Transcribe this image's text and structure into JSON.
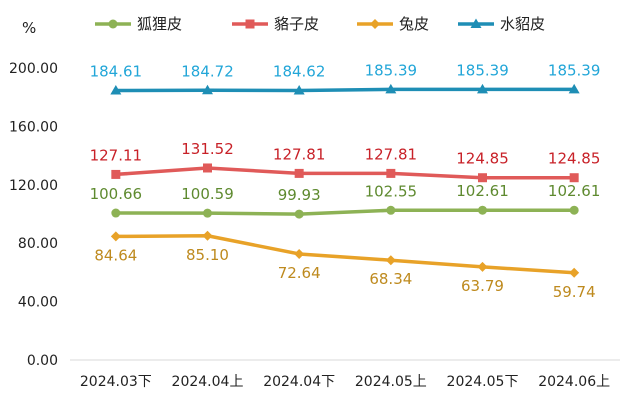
{
  "chart_data": {
    "type": "line",
    "title": "",
    "xlabel": "",
    "ylabel": "%",
    "ylim": [
      0,
      200
    ],
    "yticks": [
      "0.00",
      "40.00",
      "80.00",
      "120.00",
      "160.00",
      "200.00"
    ],
    "grid": false,
    "legend": "top",
    "categories": [
      "2024.03下",
      "2024.04上",
      "2024.04下",
      "2024.05上",
      "2024.05下",
      "2024.06上"
    ],
    "series": [
      {
        "name": "狐狸皮",
        "color": "#8DB255",
        "marker": "circle",
        "values": [
          100.66,
          100.59,
          99.93,
          102.55,
          102.61,
          102.61
        ],
        "labels": [
          "100.66",
          "100.59",
          "99.93",
          "102.55",
          "102.61",
          "102.61"
        ],
        "label_position": "above",
        "label_color": "#5E8A2F"
      },
      {
        "name": "貉子皮",
        "color": "#E05A59",
        "marker": "square",
        "values": [
          127.11,
          131.52,
          127.81,
          127.81,
          124.85,
          124.85
        ],
        "labels": [
          "127.11",
          "131.52",
          "127.81",
          "127.81",
          "124.85",
          "124.85"
        ],
        "label_position": "above",
        "label_color": "#C82128"
      },
      {
        "name": "兔皮",
        "color": "#E8A228",
        "marker": "diamond",
        "values": [
          84.64,
          85.1,
          72.64,
          68.34,
          63.79,
          59.74
        ],
        "labels": [
          "84.64",
          "85.10",
          "72.64",
          "68.34",
          "63.79",
          "59.74"
        ],
        "label_position": "below",
        "label_color": "#BE8A1E"
      },
      {
        "name": "水貂皮",
        "color": "#1E8EB5",
        "marker": "triangle",
        "values": [
          184.61,
          184.72,
          184.62,
          185.39,
          185.39,
          185.39
        ],
        "labels": [
          "184.61",
          "184.72",
          "184.62",
          "185.39",
          "185.39",
          "185.39"
        ],
        "label_position": "above",
        "label_color": "#22A6D8"
      }
    ]
  }
}
